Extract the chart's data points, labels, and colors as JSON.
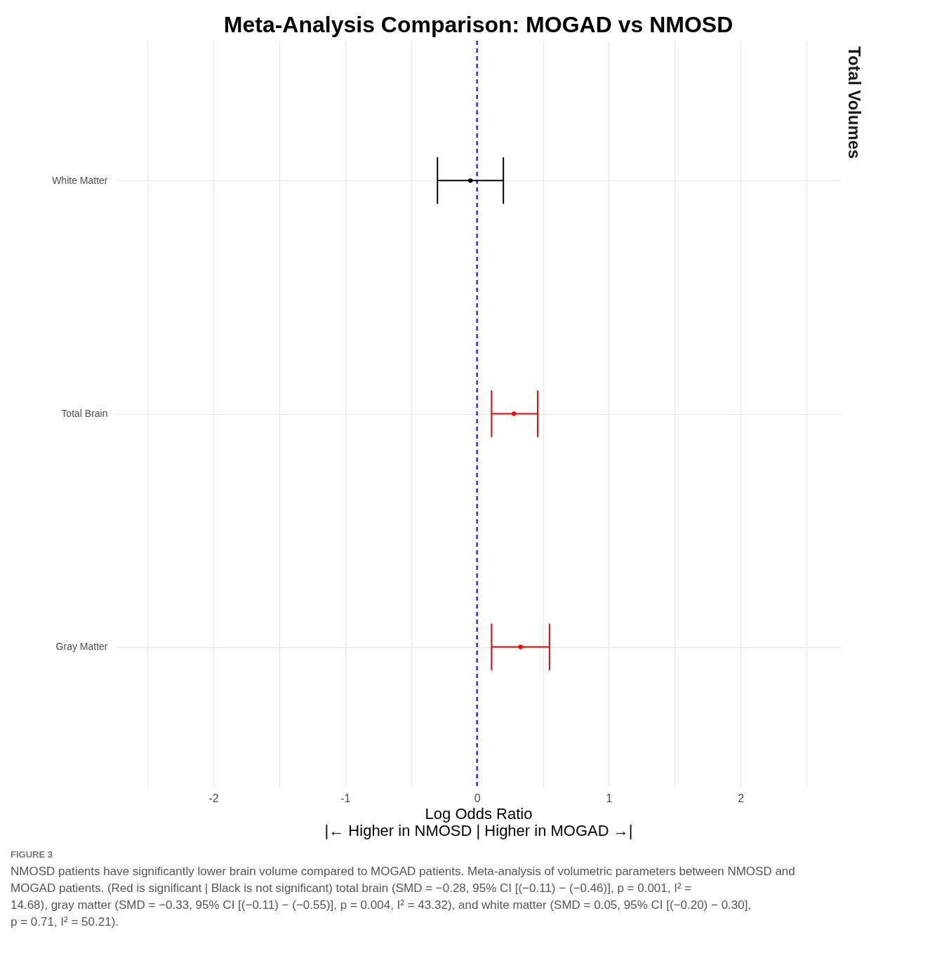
{
  "chart_data": {
    "type": "scatter",
    "orientation": "horizontal",
    "title": "Meta-Analysis Comparison: MOGAD vs NMOSD",
    "xlabel": "Log Odds Ratio\n|← Higher in NMOSD | Higher in MOGAD →|",
    "categories": [
      "White Matter",
      "Total Brain",
      "Gray Matter"
    ],
    "values": [
      -0.05,
      0.28,
      0.33
    ],
    "errors": [
      [
        -0.3,
        0.2
      ],
      [
        0.11,
        0.46
      ],
      [
        0.11,
        0.55
      ]
    ],
    "colors": [
      "#000000",
      "#ff0000",
      "#ff0000"
    ],
    "marker": "circle",
    "xlim": [
      -2.74,
      2.76
    ],
    "xticks": [
      {
        "value": -2.5,
        "label": null
      },
      -2,
      {
        "value": -1.5,
        "label": null
      },
      -1,
      {
        "value": -0.5,
        "label": null
      },
      0,
      {
        "value": 0.5,
        "label": null
      },
      1,
      {
        "value": 1.5,
        "label": null
      },
      2,
      {
        "value": 2.5,
        "label": null
      }
    ],
    "grid": true,
    "legend": false,
    "ref_lines": [
      {
        "axis": "x",
        "value": 0,
        "color": "#0000ff",
        "line_style": "dashed"
      }
    ],
    "annotations": [
      "Total Volumes",
      "FIGURE 3",
      "NMOSD patients have significantly lower brain volume compared to MOGAD patients. Meta-analysis of volumetric parameters between NMOSD and MOGAD patients. (Red is significant | Black is not significant) total brain (SMD = −0.28, 95% CI [(−0.11) − (−0.46)], p = 0.001, I² = 14.68), gray matter (SMD = −0.33, 95% CI [(−0.11) − (−0.55)], p = 0.004, I² = 43.32), and white matter (SMD = 0.05, 95% CI [(−0.20) − 0.30], p = 0.71, I² = 50.21)."
    ]
  }
}
